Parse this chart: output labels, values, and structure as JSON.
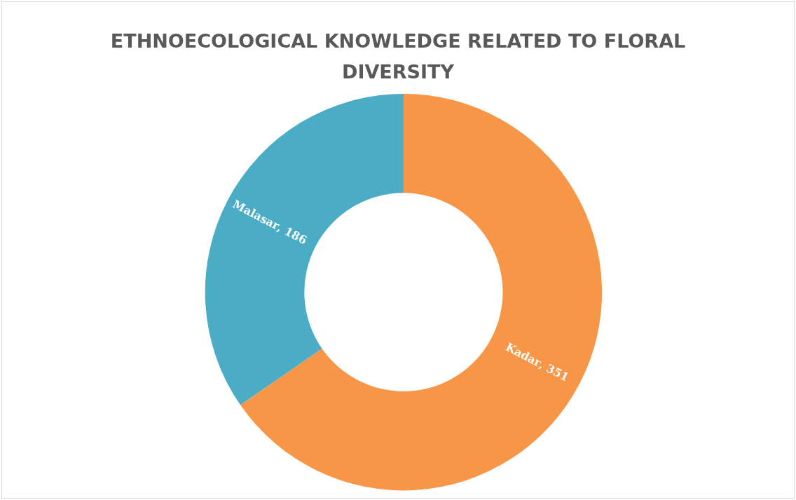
{
  "chart_data": {
    "type": "donut",
    "title": "ETHNOECOLOGICAL KNOWLEDGE RELATED TO FLORAL\nDIVERSITY",
    "categories": [
      "Kadar",
      "Malasar"
    ],
    "values": [
      351,
      186
    ],
    "value_labels": [
      ", 351",
      ", 186"
    ],
    "colors": [
      "#f79646",
      "#4bacc6"
    ],
    "legend": false
  }
}
